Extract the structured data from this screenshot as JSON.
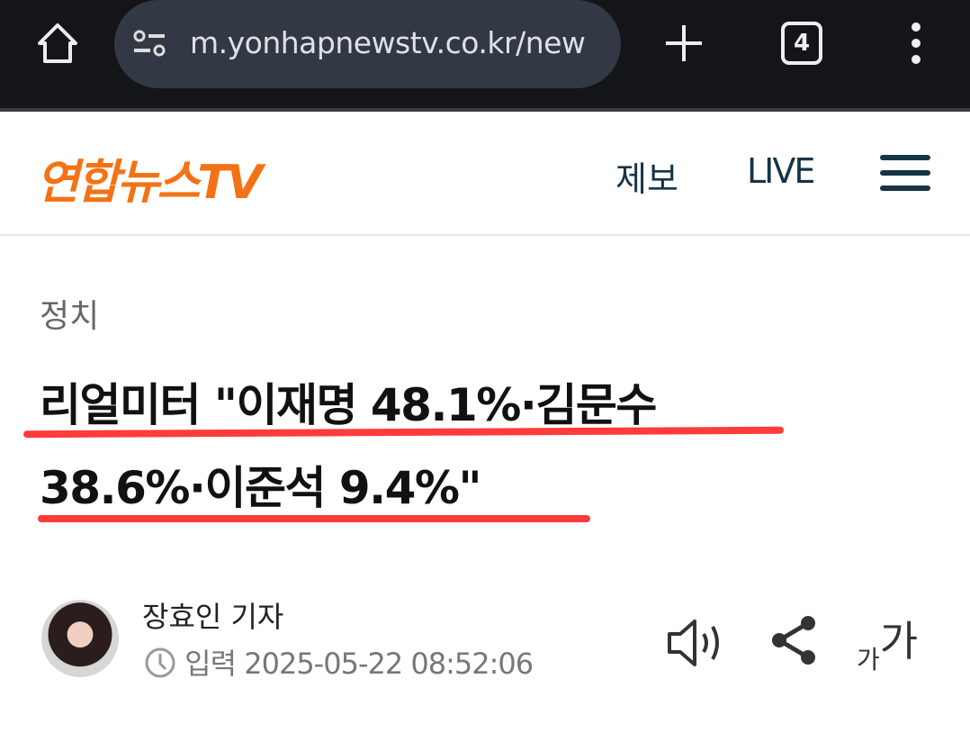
{
  "browser": {
    "url": "m.yonhapnewstv.co.kr/new",
    "tab_count": "4"
  },
  "site": {
    "logo": "연합뉴스TV",
    "nav": {
      "tip": "제보",
      "live": "LIVE"
    }
  },
  "article": {
    "category": "정치",
    "title_line1": "리얼미터 \"이재명 48.1%·김문수",
    "title_line2": "38.6%·이준석 9.4%\"",
    "reporter": "장효인 기자",
    "date_label": "입력",
    "date": "2025-05-22 08:52:06",
    "font_small": "가",
    "font_large": "가"
  },
  "colors": {
    "brand": "#f47216",
    "underline": "#ff3b3b",
    "nav": "#163447"
  }
}
